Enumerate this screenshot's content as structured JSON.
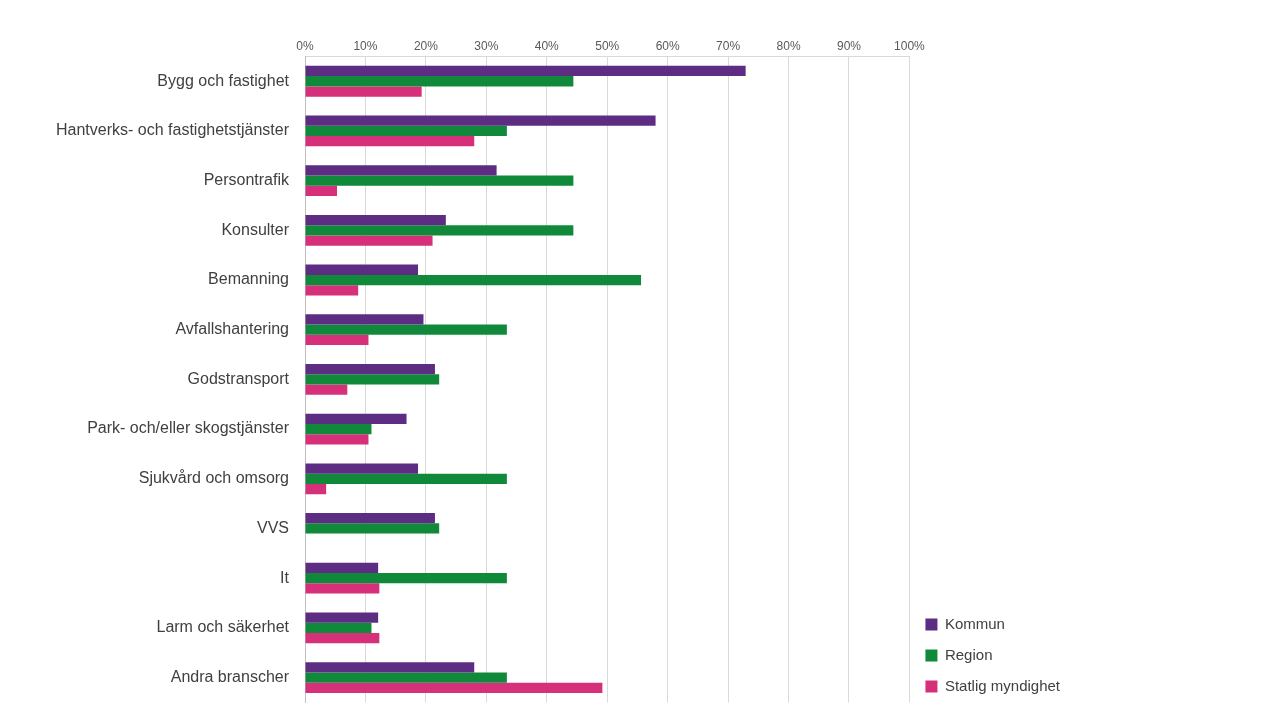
{
  "chart_data": {
    "type": "bar",
    "orientation": "horizontal",
    "categories": [
      "Bygg och fastighet",
      "Hantverks- och fastighetstjänster",
      "Persontrafik",
      "Konsulter",
      "Bemanning",
      "Avfallshantering",
      "Godstransport",
      "Park- och/eller skogstjänster",
      "Sjukvård och omsorg",
      "VVS",
      "It",
      "Larm och säkerhet",
      "Andra branscher"
    ],
    "series": [
      {
        "name": "Kommun",
        "color": "#5c2d82",
        "values": [
          72.9,
          58.0,
          31.7,
          23.3,
          18.7,
          19.6,
          21.5,
          16.8,
          18.7,
          21.5,
          12.1,
          12.1,
          28.0
        ]
      },
      {
        "name": "Region",
        "color": "#108a3a",
        "values": [
          44.4,
          33.4,
          44.4,
          44.4,
          55.6,
          33.4,
          22.2,
          11.0,
          33.4,
          22.2,
          33.4,
          11.0,
          33.4
        ]
      },
      {
        "name": "Statlig myndighet",
        "color": "#d6307b",
        "values": [
          19.3,
          28.0,
          5.3,
          21.1,
          8.8,
          10.5,
          7.0,
          10.5,
          3.5,
          0,
          12.3,
          12.3,
          49.2
        ]
      }
    ],
    "xlim": [
      0,
      100
    ],
    "xticks": [
      {
        "value": 0,
        "label": "0%"
      },
      {
        "value": 10,
        "label": "10%"
      },
      {
        "value": 20,
        "label": "20%"
      },
      {
        "value": 30,
        "label": "30%"
      },
      {
        "value": 40,
        "label": "40%"
      },
      {
        "value": 50,
        "label": "50%"
      },
      {
        "value": 60,
        "label": "60%"
      },
      {
        "value": 70,
        "label": "70%"
      },
      {
        "value": 80,
        "label": "80%"
      },
      {
        "value": 90,
        "label": "90%"
      },
      {
        "value": 100,
        "label": "100%"
      }
    ],
    "grid": true,
    "legend": "bottom-right"
  }
}
